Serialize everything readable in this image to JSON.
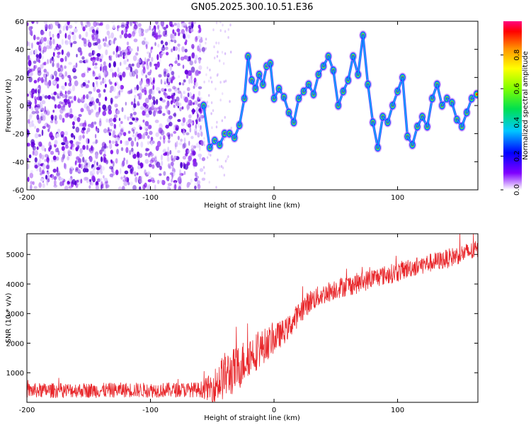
{
  "title": "GN05.2025.300.10.51.E36",
  "colors": {
    "snr_line": "#e8262a",
    "axis": "#000000",
    "background": "#ffffff"
  },
  "chart_data": [
    {
      "type": "heatmap",
      "name": "spectrogram",
      "xlabel": "Height of straight line (km)",
      "ylabel": "Frequency (Hz)",
      "xlim": [
        -200,
        165
      ],
      "ylim": [
        -60,
        60
      ],
      "xticks": [
        -200,
        -100,
        0,
        100
      ],
      "xtick_labels": [
        "-200",
        "-100",
        "0",
        "100"
      ],
      "yticks": [
        -60,
        -40,
        -20,
        0,
        20,
        40,
        60
      ],
      "ytick_labels": [
        "-60",
        "-40",
        "-20",
        "0",
        "20",
        "40",
        "60"
      ],
      "noise_region_x": [
        -200,
        -57
      ],
      "ridge": {
        "x": [
          -57,
          -52,
          -48,
          -44,
          -40,
          -36,
          -32,
          -28,
          -24,
          -21,
          -18,
          -15,
          -12,
          -9,
          -6,
          -3,
          0,
          4,
          8,
          12,
          16,
          20,
          24,
          28,
          32,
          36,
          40,
          44,
          48,
          52,
          56,
          60,
          64,
          68,
          72,
          76,
          80,
          84,
          88,
          92,
          96,
          100,
          104,
          108,
          112,
          116,
          120,
          124,
          128,
          132,
          136,
          140,
          144,
          148,
          152,
          156,
          160,
          164
        ],
        "freq": [
          0,
          -30,
          -25,
          -28,
          -20,
          -20,
          -23,
          -14,
          5,
          35,
          18,
          12,
          22,
          15,
          28,
          30,
          5,
          12,
          6,
          -5,
          -12,
          5,
          10,
          15,
          8,
          22,
          28,
          35,
          25,
          0,
          10,
          18,
          35,
          22,
          50,
          15,
          -12,
          -30,
          -8,
          -12,
          0,
          10,
          20,
          -22,
          -28,
          -15,
          -8,
          -15,
          5,
          15,
          0,
          5,
          2,
          -10,
          -15,
          -5,
          5,
          8
        ]
      },
      "colorbar": {
        "label": "Normalized spectral amplitude",
        "range": [
          0,
          1
        ],
        "ticks": [
          0.0,
          0.2,
          0.4,
          0.6,
          0.8
        ],
        "tick_labels": [
          "0.0",
          "0.2",
          "0.4",
          "0.6",
          "0.8"
        ]
      }
    },
    {
      "type": "line",
      "name": "snr",
      "xlabel": "Height of straight line (km)",
      "ylabel": "SNR (10 * v/v)",
      "xlim": [
        -200,
        165
      ],
      "ylim": [
        0,
        5700
      ],
      "xticks": [
        -200,
        -100,
        0,
        100
      ],
      "xtick_labels": [
        "-200",
        "-100",
        "0",
        "100"
      ],
      "yticks": [
        1000,
        2000,
        3000,
        4000,
        5000
      ],
      "ytick_labels": [
        "1000",
        "2000",
        "3000",
        "4000",
        "5000"
      ],
      "series": [
        {
          "name": "SNR",
          "x": [
            -200,
            -180,
            -160,
            -140,
            -120,
            -100,
            -80,
            -60,
            -50,
            -45,
            -40,
            -35,
            -30,
            -25,
            -20,
            -15,
            -10,
            -5,
            0,
            5,
            10,
            15,
            20,
            25,
            30,
            40,
            50,
            60,
            70,
            80,
            90,
            100,
            110,
            120,
            130,
            140,
            150,
            160,
            165
          ],
          "values": [
            400,
            400,
            410,
            400,
            420,
            410,
            420,
            430,
            500,
            700,
            900,
            1000,
            1100,
            1350,
            1600,
            1700,
            1850,
            2000,
            2150,
            2300,
            2450,
            2700,
            3000,
            3250,
            3450,
            3650,
            3850,
            3950,
            4050,
            4200,
            4300,
            4400,
            4550,
            4650,
            4750,
            4850,
            5000,
            5100,
            5150
          ],
          "noise_amplitude": [
            250,
            250,
            250,
            250,
            250,
            250,
            250,
            250,
            500,
            700,
            800,
            800,
            800,
            750,
            700,
            650,
            600,
            550,
            500,
            450,
            400,
            400,
            400,
            400,
            380,
            350,
            350,
            350,
            350,
            330,
            330,
            330,
            320,
            320,
            320,
            320,
            320,
            320,
            320
          ]
        }
      ]
    }
  ]
}
